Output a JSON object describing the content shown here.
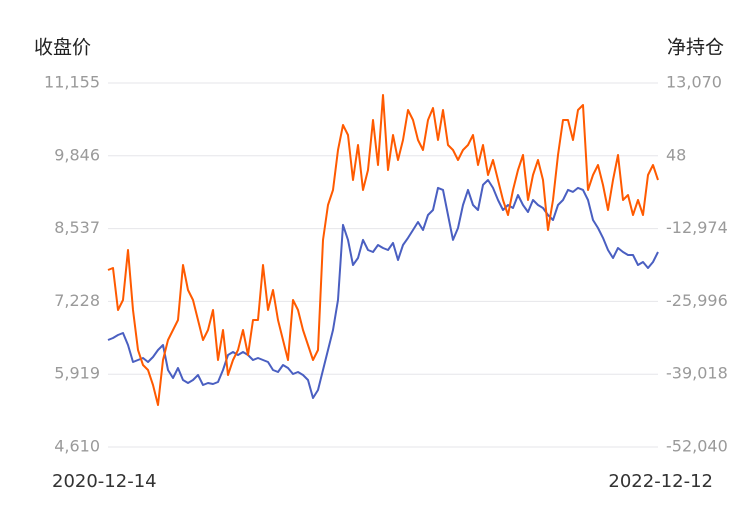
{
  "chart_data": {
    "type": "line",
    "y_label": "收盘价",
    "y2_label": "净持仓",
    "categories": [
      "2020-12-14",
      null,
      null,
      null,
      null,
      null,
      null,
      null,
      null,
      null,
      null,
      null,
      null,
      null,
      null,
      null,
      null,
      null,
      null,
      null,
      null,
      null,
      null,
      null,
      null,
      null,
      null,
      null,
      null,
      null,
      null,
      null,
      null,
      null,
      null,
      null,
      null,
      null,
      null,
      null,
      null,
      null,
      null,
      null,
      null,
      null,
      null,
      null,
      null,
      null,
      null,
      null,
      null,
      null,
      null,
      null,
      null,
      null,
      null,
      null,
      null,
      null,
      null,
      null,
      null,
      null,
      null,
      null,
      null,
      null,
      null,
      null,
      null,
      null,
      null,
      null,
      null,
      null,
      null,
      null,
      null,
      null,
      null,
      null,
      null,
      null,
      null,
      null,
      null,
      null,
      null,
      null,
      null,
      null,
      null,
      null,
      null,
      null,
      null,
      null,
      null,
      null,
      null,
      null,
      null,
      null,
      null,
      null,
      null,
      null,
      "2022-12-12"
    ],
    "series": [
      {
        "color": "#4a5fc1",
        "axis": "y",
        "values": [
          6534,
          6570,
          6624,
          6660,
          6444,
          6138,
          6174,
          6210,
          6138,
          6228,
          6354,
          6444,
          5994,
          5850,
          6030,
          5815,
          5761,
          5815,
          5905,
          5725,
          5761,
          5743,
          5779,
          5994,
          6264,
          6318,
          6264,
          6318,
          6264,
          6174,
          6210,
          6174,
          6138,
          5994,
          5959,
          6084,
          6030,
          5923,
          5959,
          5905,
          5815,
          5491,
          5635,
          5994,
          6354,
          6714,
          7255,
          8603,
          8333,
          7883,
          8009,
          8333,
          8153,
          8117,
          8243,
          8189,
          8153,
          8279,
          7973,
          8243,
          8369,
          8512,
          8656,
          8512,
          8782,
          8872,
          9268,
          9232,
          8782,
          8333,
          8548,
          8962,
          9232,
          8962,
          8872,
          9322,
          9411,
          9268,
          9052,
          8872,
          8962,
          8908,
          9142,
          8962,
          8836,
          9052,
          8962,
          8908,
          8782,
          8692,
          8962,
          9052,
          9232,
          9196,
          9268,
          9232,
          9052,
          8692,
          8548,
          8369,
          8153,
          8009,
          8189,
          8117,
          8063,
          8063,
          7883,
          7937,
          7829,
          7937,
          8117
        ]
      },
      {
        "color": "#ff5a00",
        "axis": "y2",
        "values": [
          -20384,
          -20027,
          -27540,
          -25751,
          -16806,
          -27540,
          -34696,
          -37380,
          -38274,
          -40958,
          -44536,
          -36485,
          -32907,
          -31118,
          -29329,
          -19490,
          -23962,
          -25751,
          -29329,
          -32907,
          -31118,
          -27540,
          -36485,
          -31118,
          -39169,
          -36485,
          -34696,
          -31118,
          -35591,
          -29329,
          -29329,
          -19490,
          -27540,
          -23962,
          -29329,
          -32907,
          -36485,
          -25751,
          -27540,
          -31118,
          -33802,
          -36485,
          -34696,
          -15017,
          -8756,
          -6072,
          1084,
          5556,
          3767,
          -4283,
          1978,
          -6072,
          -2494,
          6451,
          -1600,
          10923,
          -2494,
          3767,
          -705,
          2873,
          8240,
          6451,
          2873,
          1084,
          6451,
          8597,
          2873,
          8240,
          1978,
          1084,
          -705,
          1084,
          1978,
          3767,
          -1600,
          1978,
          -3389,
          -705,
          -4283,
          -7861,
          -10545,
          -6072,
          -2494,
          189,
          -7861,
          -3389,
          -705,
          -4283,
          -13228,
          -7861,
          189,
          6451,
          6451,
          2873,
          8240,
          9134,
          -6072,
          -3389,
          -1600,
          -5178,
          -9650,
          -4283,
          189,
          -7861,
          -6967,
          -10545,
          -7861,
          -10545,
          -3389,
          -1600,
          -4283
        ]
      }
    ],
    "ylim": [
      4610,
      11155
    ],
    "yticks": [
      {
        "value": 4610,
        "label": "4,610"
      },
      {
        "value": 5919,
        "label": "5,919"
      },
      {
        "value": 7228,
        "label": "7,228"
      },
      {
        "value": 8537,
        "label": "8,537"
      },
      {
        "value": 9846,
        "label": "9,846"
      },
      {
        "value": 11155,
        "label": "11,155"
      }
    ],
    "y2lim": [
      -52040,
      13070
    ],
    "y2ticks": [
      {
        "value": -52040,
        "label": "-52,040"
      },
      {
        "value": -39018,
        "label": "-39,018"
      },
      {
        "value": -25996,
        "label": "-25,996"
      },
      {
        "value": -12974,
        "label": "-12,974"
      },
      48,
      {
        "value": 13070,
        "label": "13,070"
      }
    ],
    "grid": true
  }
}
